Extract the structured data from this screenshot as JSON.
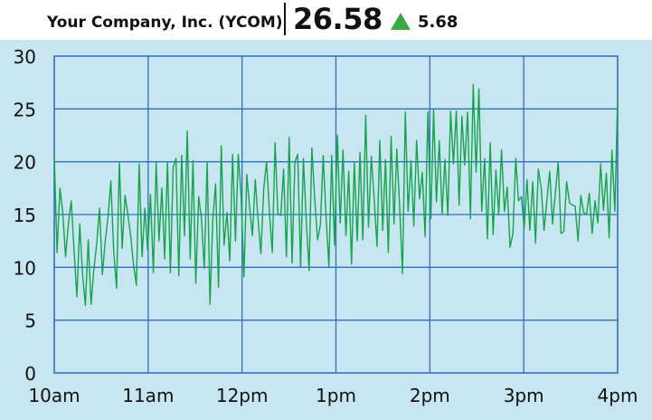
{
  "ticker": {
    "company": "Your Company, Inc. (YCOM)",
    "price": "26.58",
    "change": "5.68",
    "direction_icon": "triangle-up-icon",
    "colors": {
      "up": "#3aaa46",
      "line": "#16a34a",
      "grid": "#2f6fbf",
      "background": "#c8e6f1"
    }
  },
  "chart_data": {
    "type": "line",
    "title": "",
    "xlabel": "",
    "ylabel": "",
    "x_ticks": [
      "10am",
      "11am",
      "12pm",
      "1pm",
      "2pm",
      "3pm",
      "4pm"
    ],
    "y_ticks": [
      "0",
      "5",
      "10",
      "15",
      "20",
      "25",
      "30"
    ],
    "ylim": [
      0,
      30
    ],
    "x_range_hours": [
      10,
      16
    ],
    "grid": true,
    "legend": "none",
    "series": [
      {
        "values": [
          20.6,
          11.4,
          17.5,
          15.2,
          11.0,
          14.2,
          16.3,
          11.6,
          7.2,
          14.1,
          9.3,
          6.4,
          12.6,
          6.5,
          9.8,
          12.3,
          15.6,
          9.3,
          12.5,
          14.8,
          18.2,
          11.6,
          8.0,
          20.0,
          11.8,
          16.8,
          15.0,
          13.0,
          10.2,
          8.3,
          19.8,
          11.0,
          15.6,
          11.6,
          16.9,
          9.5,
          19.9,
          12.5,
          17.5,
          10.8,
          20.0,
          9.5,
          19.5,
          20.3,
          9.2,
          20.6,
          13.0,
          22.9,
          10.8,
          20.1,
          8.5,
          16.7,
          14.6,
          9.9,
          20.0,
          6.5,
          14.5,
          17.9,
          8.1,
          21.5,
          12.1,
          15.2,
          10.6,
          20.7,
          12.5,
          20.7,
          16.8,
          9.1,
          18.8,
          15.7,
          13.0,
          18.3,
          14.5,
          11.3,
          17.5,
          20.0,
          15.3,
          11.4,
          21.8,
          15.1,
          14.9,
          19.3,
          11.0,
          22.3,
          10.4,
          20.0,
          20.7,
          10.0,
          20.3,
          14.5,
          9.7,
          21.3,
          16.5,
          12.6,
          14.0,
          20.6,
          14.9,
          10.1,
          20.6,
          12.1,
          22.5,
          14.2,
          21.1,
          13.0,
          19.1,
          10.3,
          20.0,
          12.5,
          20.9,
          12.6,
          24.4,
          13.8,
          20.5,
          16.5,
          12.0,
          22.0,
          13.5,
          20.2,
          11.4,
          22.4,
          14.1,
          21.2,
          15.8,
          9.4,
          24.7,
          15.3,
          20.1,
          13.9,
          22.0,
          16.5,
          19.0,
          12.9,
          24.7,
          14.6,
          24.9,
          16.2,
          22.0,
          15.1,
          20.2,
          14.9,
          24.8,
          19.8,
          24.8,
          15.9,
          24.3,
          19.7,
          24.7,
          14.6,
          27.3,
          19.0,
          26.9,
          15.3,
          20.3,
          12.7,
          21.8,
          13.1,
          19.2,
          15.0,
          21.1,
          15.3,
          17.6,
          11.9,
          13.2,
          20.3,
          16.3,
          16.7,
          13.7,
          18.3,
          13.5,
          18.1,
          12.3,
          19.3,
          17.5,
          13.5,
          16.3,
          19.1,
          14.1,
          17.0,
          20.0,
          13.2,
          13.4,
          18.1,
          16.1,
          15.9,
          15.8,
          12.5,
          16.8,
          15.2,
          15.0,
          17.0,
          13.2,
          16.3,
          14.2,
          19.8,
          15.4,
          18.9,
          12.8,
          21.1,
          15.3,
          26.1
        ]
      }
    ]
  }
}
